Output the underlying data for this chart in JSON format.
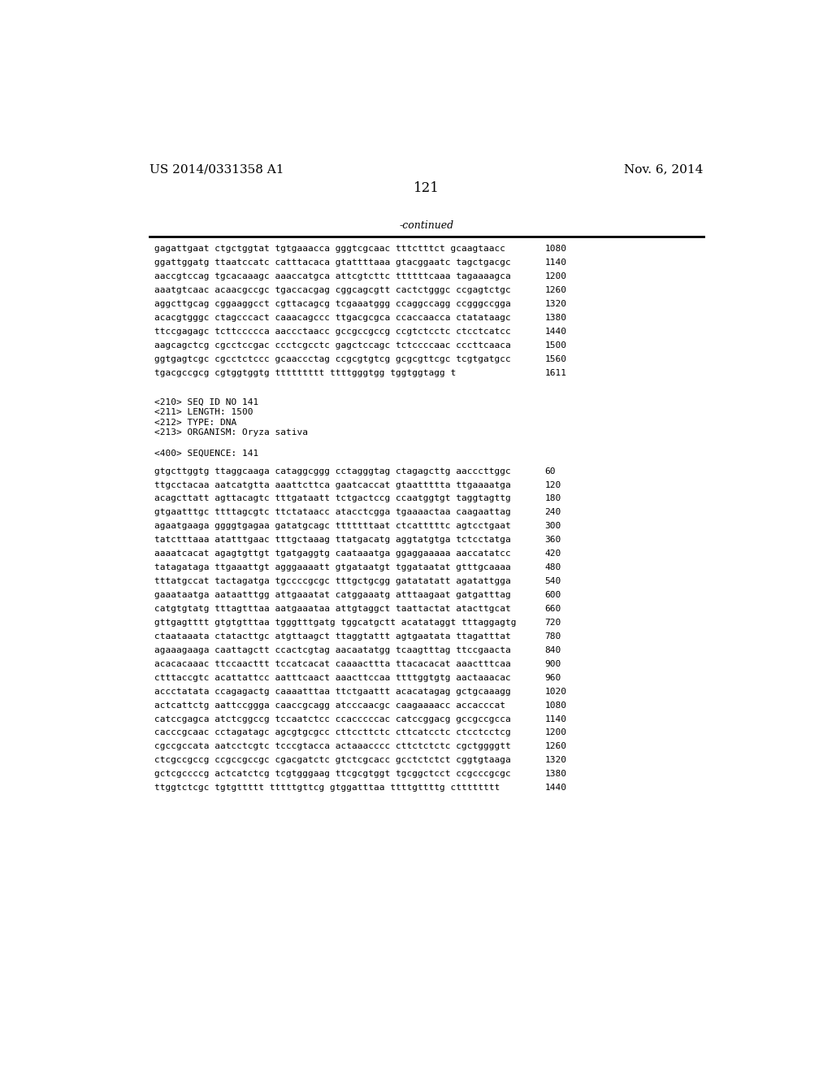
{
  "page_left": "US 2014/0331358 A1",
  "page_right": "Nov. 6, 2014",
  "page_number": "121",
  "continued_text": "-continued",
  "background_color": "#ffffff",
  "text_color": "#000000",
  "sequence_lines_top": [
    [
      "gagattgaat ctgctggtat tgtgaaacca gggtcgcaac tttctttct gcaagtaacc",
      "1080"
    ],
    [
      "ggattggatg ttaatccatc catttacaca gtattttaaa gtacggaatc tagctgacgc",
      "1140"
    ],
    [
      "aaccgtccag tgcacaaagc aaaccatgca attcgtcttc ttttttcaaa tagaaaagca",
      "1200"
    ],
    [
      "aaatgtcaac acaacgccgc tgaccacgag cggcagcgtt cactctgggc ccgagtctgc",
      "1260"
    ],
    [
      "aggcttgcag cggaaggcct cgttacagcg tcgaaatggg ccaggccagg ccgggccgga",
      "1320"
    ],
    [
      "acacgtgggc ctagcccact caaacagccc ttgacgcgca ccaccaacca ctatataagc",
      "1380"
    ],
    [
      "ttccgagagc tcttccccca aaccctaacc gccgccgccg ccgtctcctc ctcctcatcc",
      "1440"
    ],
    [
      "aagcagctcg cgcctccgac ccctcgcctc gagctccagc tctccccaac cccttcaaca",
      "1500"
    ],
    [
      "ggtgagtcgc cgcctctccc gcaaccctag ccgcgtgtcg gcgcgttcgc tcgtgatgcc",
      "1560"
    ],
    [
      "tgacgccgcg cgtggtggtg ttttttttt ttttgggtgg tggtggtagg t",
      "1611"
    ]
  ],
  "metadata_lines": [
    "<210> SEQ ID NO 141",
    "<211> LENGTH: 1500",
    "<212> TYPE: DNA",
    "<213> ORGANISM: Oryza sativa"
  ],
  "sequence_label": "<400> SEQUENCE: 141",
  "sequence_lines_bottom": [
    [
      "gtgcttggtg ttaggcaaga cataggcggg cctagggtag ctagagcttg aacccttggc",
      "60"
    ],
    [
      "ttgcctacaa aatcatgtta aaattcttca gaatcaccat gtaattttta ttgaaaatga",
      "120"
    ],
    [
      "acagcttatt agttacagtc tttgataatt tctgactccg ccaatggtgt taggtagttg",
      "180"
    ],
    [
      "gtgaatttgc ttttagcgtc ttctataacc atacctcgga tgaaaactaa caagaattag",
      "240"
    ],
    [
      "agaatgaaga ggggtgagaa gatatgcagc tttttttaat ctcatttttc agtcctgaat",
      "300"
    ],
    [
      "tatctttaaa atatttgaac tttgctaaag ttatgacatg aggtatgtga tctcctatga",
      "360"
    ],
    [
      "aaaatcacat agagtgttgt tgatgaggtg caataaatga ggaggaaaaa aaccatatcc",
      "420"
    ],
    [
      "tatagataga ttgaaattgt agggaaaatt gtgataatgt tggataatat gtttgcaaaa",
      "480"
    ],
    [
      "tttatgccat tactagatga tgccccgcgc tttgctgcgg gatatatatt agatattgga",
      "540"
    ],
    [
      "gaaataatga aataatttgg attgaaatat catggaaatg atttaagaat gatgatttag",
      "600"
    ],
    [
      "catgtgtatg tttagtttaa aatgaaataa attgtaggct taattactat atacttgcat",
      "660"
    ],
    [
      "gttgagtttt gtgtgtttaa tgggtttgatg tggcatgctt acatataggt tttaggagtg",
      "720"
    ],
    [
      "ctaataaata ctatacttgc atgttaagct ttaggtattt agtgaatata ttagatttat",
      "780"
    ],
    [
      "agaaagaaga caattagctt ccactcgtag aacaatatgg tcaagtttag ttccgaacta",
      "840"
    ],
    [
      "acacacaaac ttccaacttt tccatcacat caaaacttta ttacacacat aaactttcaa",
      "900"
    ],
    [
      "ctttaccgtc acattattcc aatttcaact aaacttccaa ttttggtgtg aactaaacac",
      "960"
    ],
    [
      "accctatata ccagagactg caaaatttaa ttctgaattt acacatagag gctgcaaagg",
      "1020"
    ],
    [
      "actcattctg aattccggga caaccgcagg atcccaacgc caagaaaacc accacccat",
      "1080"
    ],
    [
      "catccgagca atctcggccg tccaatctcc ccacccccac catccggacg gccgccgcca",
      "1140"
    ],
    [
      "cacccgcaac cctagatagc agcgtgcgcc cttccttctc cttcatcctc ctcctcctcg",
      "1200"
    ],
    [
      "cgccgccata aatcctcgtc tcccgtacca actaaacccc cttctctctc cgctggggtt",
      "1260"
    ],
    [
      "ctcgccgccg ccgccgccgc cgacgatctc gtctcgcacc gcctctctct cggtgtaaga",
      "1320"
    ],
    [
      "gctcgccccg actcatctcg tcgtgggaag ttcgcgtggt tgcggctcct ccgcccgcgc",
      "1380"
    ],
    [
      "ttggtctcgc tgtgttttt tttttgttcg gtggatttaa ttttgttttg ctttttttt",
      "1440"
    ]
  ]
}
